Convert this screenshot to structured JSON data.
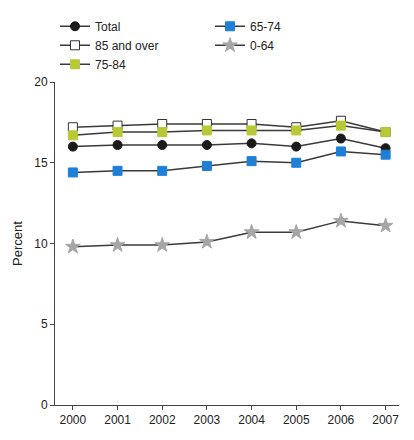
{
  "chart_data": {
    "type": "line",
    "y_label": "Percent",
    "x": [
      2000,
      2001,
      2002,
      2003,
      2004,
      2005,
      2006,
      2007
    ],
    "xlim": [
      1999.6,
      2007.3
    ],
    "xticks": [
      2000,
      2001,
      2002,
      2003,
      2004,
      2005,
      2006,
      2007
    ],
    "ylim": [
      0,
      20
    ],
    "yticks": [
      0,
      5,
      10,
      15,
      20
    ],
    "grid": false,
    "legend": "top",
    "series": [
      {
        "name": "Total",
        "color": "#1a1a1a",
        "marker": "circle",
        "values": [
          16.0,
          16.1,
          16.1,
          16.1,
          16.2,
          16.0,
          16.5,
          15.9
        ]
      },
      {
        "name": "65-74",
        "color": "#1f7fd6",
        "marker": "square",
        "values": [
          14.4,
          14.5,
          14.5,
          14.8,
          15.1,
          15.0,
          15.7,
          15.5
        ]
      },
      {
        "name": "85 and over",
        "color": "#ffffff",
        "marker": "square",
        "values": [
          17.2,
          17.3,
          17.4,
          17.4,
          17.4,
          17.2,
          17.6,
          16.9
        ]
      },
      {
        "name": "0-64",
        "color": "#a6a6a6",
        "marker": "star",
        "values": [
          9.8,
          9.9,
          9.9,
          10.1,
          10.7,
          10.7,
          11.4,
          11.1
        ]
      },
      {
        "name": "75-84",
        "color": "#b8c935",
        "marker": "square",
        "values": [
          16.7,
          16.9,
          16.9,
          17.0,
          17.0,
          17.0,
          17.3,
          16.9
        ]
      }
    ]
  }
}
